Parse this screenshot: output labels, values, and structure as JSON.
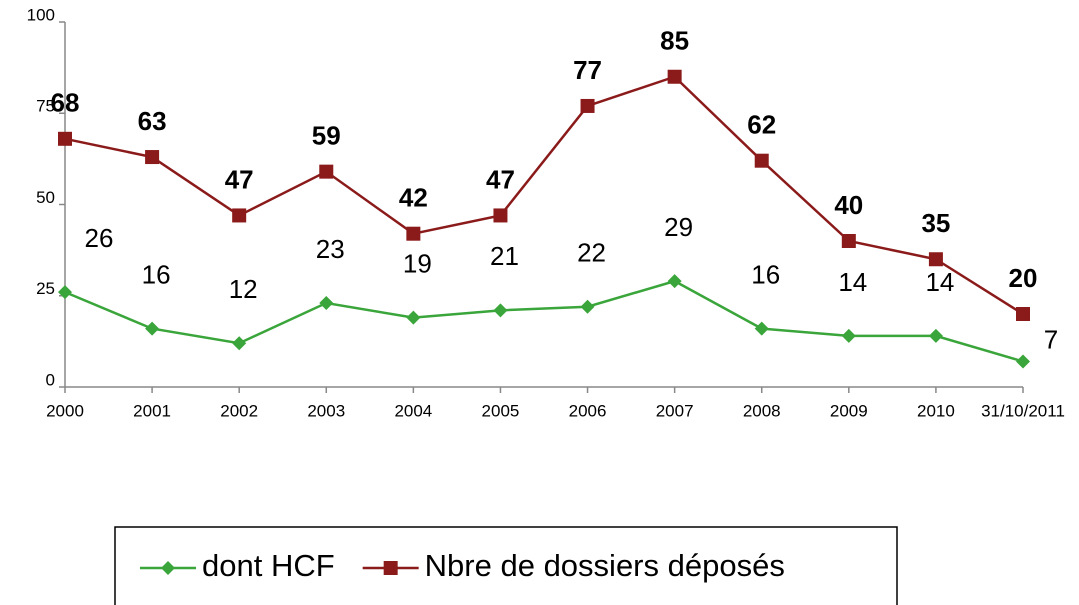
{
  "chart_data": {
    "type": "line",
    "categories": [
      "2000",
      "2001",
      "2002",
      "2003",
      "2004",
      "2005",
      "2006",
      "2007",
      "2008",
      "2009",
      "2010",
      "31/10/2011"
    ],
    "series": [
      {
        "name": "dont HCF",
        "color": "#3aa53a",
        "marker": "diamond",
        "values": [
          26,
          16,
          12,
          23,
          19,
          21,
          22,
          29,
          16,
          14,
          14,
          7
        ]
      },
      {
        "name": "Nbre de dossiers déposés",
        "color": "#8b1a1a",
        "marker": "square",
        "values": [
          68,
          63,
          47,
          59,
          42,
          47,
          77,
          85,
          62,
          40,
          35,
          20
        ]
      }
    ],
    "ylim": [
      0,
      100
    ],
    "yticks": [
      0,
      25,
      50,
      75,
      100
    ],
    "legend": "bottom"
  }
}
